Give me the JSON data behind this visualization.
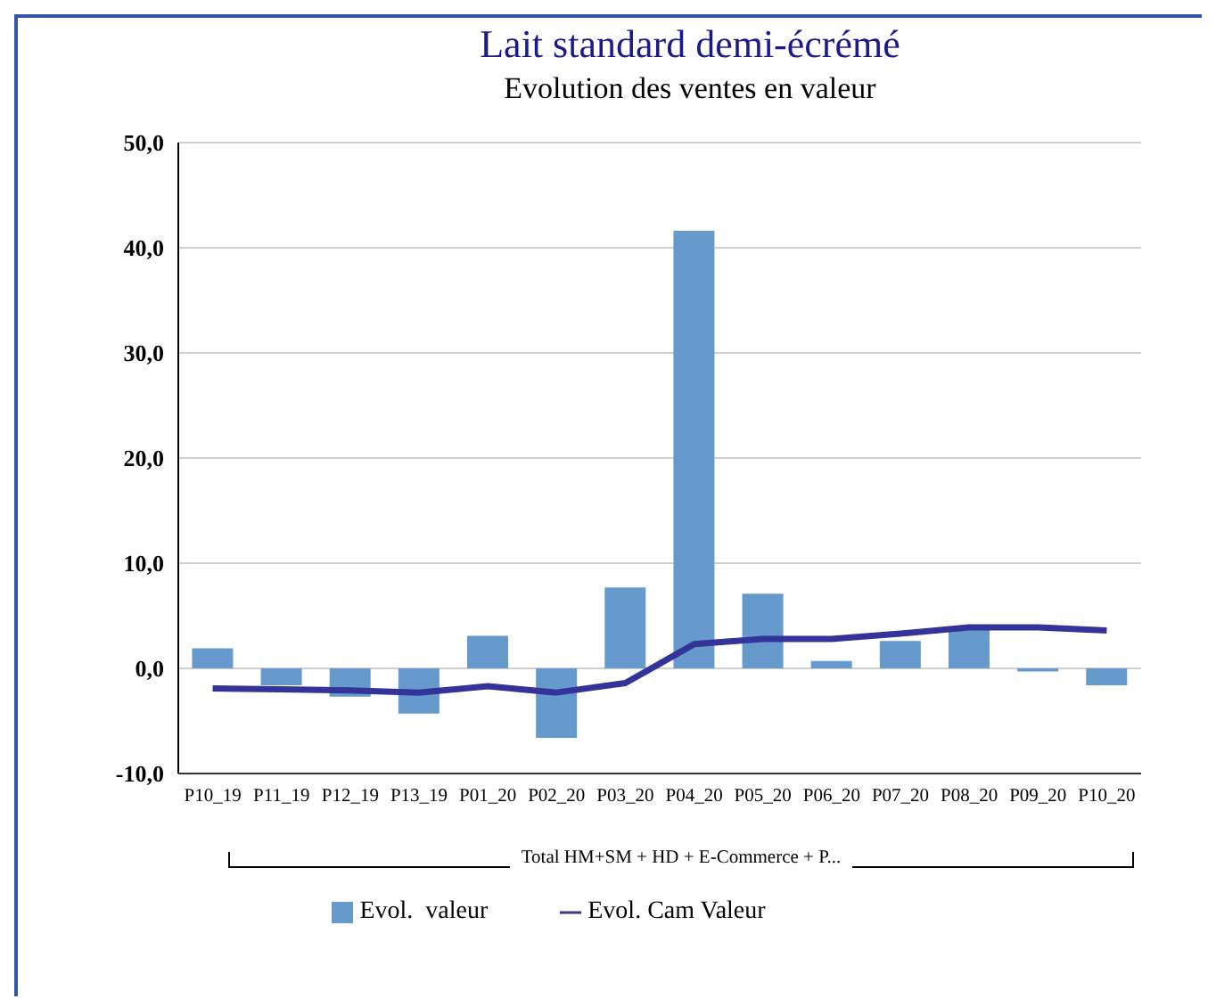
{
  "chart_data": {
    "type": "bar",
    "title": "Lait standard demi-écrémé",
    "subtitle": "Evolution des ventes en valeur",
    "categories": [
      "P10_19",
      "P11_19",
      "P12_19",
      "P13_19",
      "P01_20",
      "P02_20",
      "P03_20",
      "P04_20",
      "P05_20",
      "P06_20",
      "P07_20",
      "P08_20",
      "P09_20",
      "P10_20"
    ],
    "series": [
      {
        "name": "Evol.  valeur",
        "color": "#6699cc",
        "values": [
          1.9,
          -1.6,
          -2.7,
          -4.3,
          3.1,
          -6.6,
          7.7,
          41.6,
          7.1,
          0.7,
          2.6,
          3.8,
          -0.3,
          -1.6
        ]
      },
      {
        "name": "Evol. Cam Valeur",
        "type": "line",
        "color": "#333399",
        "values": [
          -1.9,
          -2.0,
          -2.1,
          -2.3,
          -1.7,
          -2.3,
          -1.4,
          2.3,
          2.8,
          2.8,
          3.3,
          3.9,
          3.9,
          3.6
        ]
      }
    ],
    "ylim": [
      -10,
      50
    ],
    "yticks": [
      {
        "value": -10,
        "label": "-10,0"
      },
      {
        "value": 0,
        "label": "0,0"
      },
      {
        "value": 10,
        "label": "10,0"
      },
      {
        "value": 20,
        "label": "20,0"
      },
      {
        "value": 30,
        "label": "30,0"
      },
      {
        "value": 40,
        "label": "40,0"
      },
      {
        "value": 50,
        "label": "50,0"
      }
    ],
    "grid": "y",
    "legend": "bottom",
    "marker": "none",
    "annotations": [
      "Total HM+SM + HD + E-Commerce + P..."
    ]
  }
}
